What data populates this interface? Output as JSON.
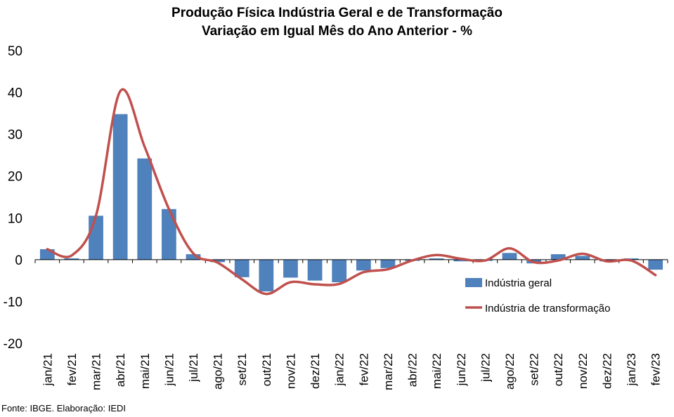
{
  "title_line1": "Produção Física Indústria Geral e de Transformação",
  "title_line2": "Variação em Igual Mês do Ano Anterior - %",
  "source": "Fonte: IBGE. Elaboração: IEDI",
  "colors": {
    "bar": "#4F81BD",
    "line": "#C0504D"
  },
  "chart_data": {
    "type": "bar",
    "categories": [
      "jan/21",
      "fev/21",
      "mar/21",
      "abr/21",
      "mai/21",
      "jun/21",
      "jul/21",
      "ago/21",
      "set/21",
      "out/21",
      "nov/21",
      "dez/21",
      "jan/22",
      "fev/22",
      "mar/22",
      "abr/22",
      "mai/22",
      "jun/22",
      "jul/22",
      "ago/22",
      "set/22",
      "out/22",
      "nov/22",
      "dez/22",
      "jan/23",
      "fev/23"
    ],
    "series": [
      {
        "name": "Indústria geral",
        "kind": "bar",
        "values": [
          2.5,
          0.3,
          10.5,
          34.8,
          24.2,
          12.1,
          1.3,
          -0.6,
          -4.2,
          -7.6,
          -4.3,
          -5.0,
          -5.4,
          -2.6,
          -2.0,
          -0.3,
          0.3,
          -0.4,
          -0.3,
          1.6,
          -0.9,
          1.3,
          0.9,
          -0.4,
          0.3,
          -2.4
        ]
      },
      {
        "name": "Indústria de transformação",
        "kind": "line",
        "values": [
          2.5,
          1.0,
          10.5,
          40.3,
          27.0,
          12.1,
          1.5,
          -0.7,
          -4.7,
          -8.2,
          -5.4,
          -5.9,
          -5.8,
          -3.0,
          -2.3,
          -0.2,
          1.1,
          0.2,
          -0.2,
          2.7,
          -0.6,
          -0.2,
          1.4,
          -0.4,
          -0.2,
          -3.7
        ]
      }
    ],
    "y_ticks": [
      "50",
      "40",
      "30",
      "20",
      "10",
      "0",
      "-10",
      "-20"
    ],
    "ylim": [
      -20,
      50
    ],
    "legend_position": "right, below zero line",
    "grid": false
  }
}
